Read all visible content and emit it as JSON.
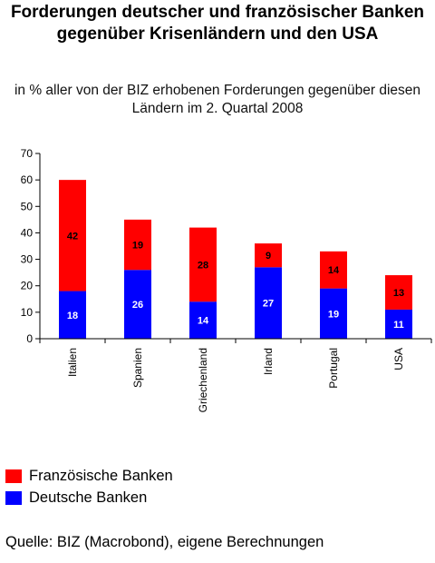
{
  "title": "Forderungen deutscher und französischer Banken gegenüber Krisenländern und den USA",
  "subtitle": "in % aller von der BIZ erhobenen Forderungen gegenüber diesen Ländern im 2. Quartal 2008",
  "source": "Quelle:  BIZ (Macrobond), eigene Berechnungen",
  "colors": {
    "french": "#ff0000",
    "german": "#0000ff"
  },
  "chart_data": {
    "type": "bar",
    "stacked": true,
    "categories": [
      "Italien",
      "Spanien",
      "Griechenland",
      "Irland",
      "Portugal",
      "USA"
    ],
    "series": [
      {
        "name": "Deutsche Banken",
        "values": [
          18,
          26,
          14,
          27,
          19,
          11
        ]
      },
      {
        "name": "Französische Banken",
        "values": [
          42,
          19,
          28,
          9,
          14,
          13
        ]
      }
    ],
    "ylim": [
      0,
      70
    ],
    "yticks": [
      0,
      10,
      20,
      30,
      40,
      50,
      60,
      70
    ],
    "legend": "bottom-left"
  }
}
